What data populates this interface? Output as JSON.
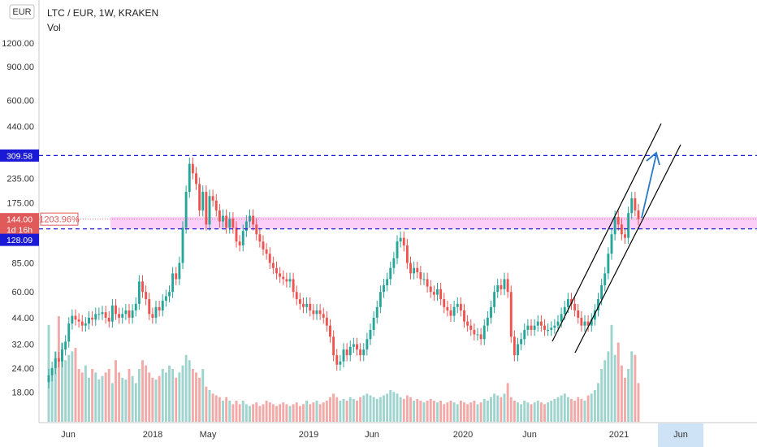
{
  "header": {
    "currency_badge": "EUR",
    "title": "LTC / EUR, 1W, KRAKEN",
    "indicator": "Vol"
  },
  "price_labels": {
    "upper_level": "309.58",
    "lower_level": "128.09",
    "current_price": "144.00",
    "change_pct": "1203.96%",
    "countdown": "1d 16h"
  },
  "chart_data": {
    "type": "candlestick",
    "title": "LTC / EUR, 1W, KRAKEN",
    "y_scale": "log",
    "y_ticks": [
      "1200.00",
      "900.00",
      "600.00",
      "440.00",
      "235.00",
      "175.00",
      "85.00",
      "60.00",
      "44.00",
      "32.00",
      "24.00",
      "18.00"
    ],
    "x_ticks": [
      "Jun",
      "2018",
      "May",
      "2019",
      "Jun",
      "2020",
      "Jun",
      "2021",
      "Jun"
    ],
    "highlighted_x_tick": "Jun",
    "levels": [
      {
        "value": 309.58,
        "style": "dashed",
        "color": "#1a1ad6"
      },
      {
        "value": 128.09,
        "style": "dashed",
        "color": "#1a1ad6"
      }
    ],
    "zone": {
      "from": 128,
      "to": 148,
      "color": "#f7a8f0"
    },
    "current_price": 144.0,
    "series_weekly_closes": [
      22,
      24,
      27,
      26,
      30,
      33,
      41,
      45,
      43,
      42,
      40,
      41,
      44,
      43,
      46,
      46,
      47,
      44,
      42,
      51,
      46,
      44,
      46,
      48,
      44,
      48,
      52,
      68,
      60,
      55,
      46,
      44,
      50,
      48,
      54,
      57,
      60,
      75,
      70,
      85,
      130,
      200,
      280,
      250,
      220,
      160,
      200,
      135,
      190,
      180,
      160,
      140,
      150,
      130,
      145,
      130,
      110,
      105,
      125,
      140,
      150,
      135,
      120,
      110,
      100,
      95,
      85,
      80,
      75,
      72,
      70,
      68,
      70,
      60,
      55,
      52,
      50,
      52,
      48,
      46,
      48,
      46,
      44,
      40,
      35,
      28,
      25,
      26,
      30,
      28,
      31,
      32,
      30,
      28,
      30,
      34,
      38,
      44,
      50,
      60,
      65,
      70,
      80,
      90,
      110,
      115,
      105,
      85,
      75,
      80,
      76,
      70,
      70,
      64,
      60,
      58,
      62,
      55,
      50,
      48,
      45,
      50,
      52,
      48,
      42,
      40,
      38,
      36,
      36,
      34,
      40,
      44,
      50,
      60,
      65,
      62,
      70,
      60,
      35,
      28,
      32,
      34,
      38,
      40,
      38,
      40,
      42,
      40,
      38,
      38,
      39,
      40,
      42,
      46,
      50,
      55,
      52,
      48,
      44,
      40,
      42,
      40,
      43,
      48,
      55,
      65,
      75,
      95,
      120,
      148,
      135,
      120,
      115,
      155,
      185,
      160,
      144
    ],
    "volume_weekly": [
      55,
      30,
      40,
      60,
      45,
      35,
      38,
      40,
      42,
      30,
      28,
      32,
      25,
      30,
      28,
      24,
      26,
      28,
      30,
      22,
      35,
      28,
      25,
      24,
      30,
      26,
      22,
      30,
      35,
      32,
      28,
      25,
      24,
      26,
      30,
      28,
      32,
      30,
      25,
      28,
      32,
      38,
      35,
      30,
      28,
      25,
      30,
      20,
      18,
      16,
      15,
      14,
      12,
      14,
      12,
      10,
      12,
      10,
      12,
      10,
      9,
      10,
      11,
      9,
      10,
      12,
      11,
      10,
      9,
      10,
      11,
      10,
      9,
      10,
      11,
      9,
      10,
      12,
      10,
      11,
      12,
      10,
      11,
      12,
      14,
      16,
      14,
      12,
      13,
      12,
      14,
      13,
      12,
      14,
      15,
      16,
      15,
      14,
      13,
      14,
      15,
      16,
      18,
      17,
      16,
      14,
      13,
      15,
      14,
      12,
      13,
      12,
      11,
      12,
      13,
      12,
      11,
      12,
      10,
      11,
      12,
      11,
      10,
      12,
      11,
      10,
      11,
      12,
      10,
      11,
      13,
      12,
      14,
      16,
      15,
      14,
      16,
      22,
      14,
      12,
      11,
      10,
      12,
      11,
      10,
      11,
      12,
      11,
      10,
      11,
      12,
      13,
      14,
      15,
      16,
      14,
      13,
      12,
      14,
      13,
      12,
      15,
      16,
      18,
      22,
      30,
      35,
      40,
      55,
      38,
      45,
      32,
      25,
      30,
      40,
      38,
      22
    ],
    "annotations": [
      {
        "type": "ascending-channel",
        "color": "#000000"
      },
      {
        "type": "arrow",
        "color": "#2979c9",
        "direction": "up"
      }
    ]
  }
}
